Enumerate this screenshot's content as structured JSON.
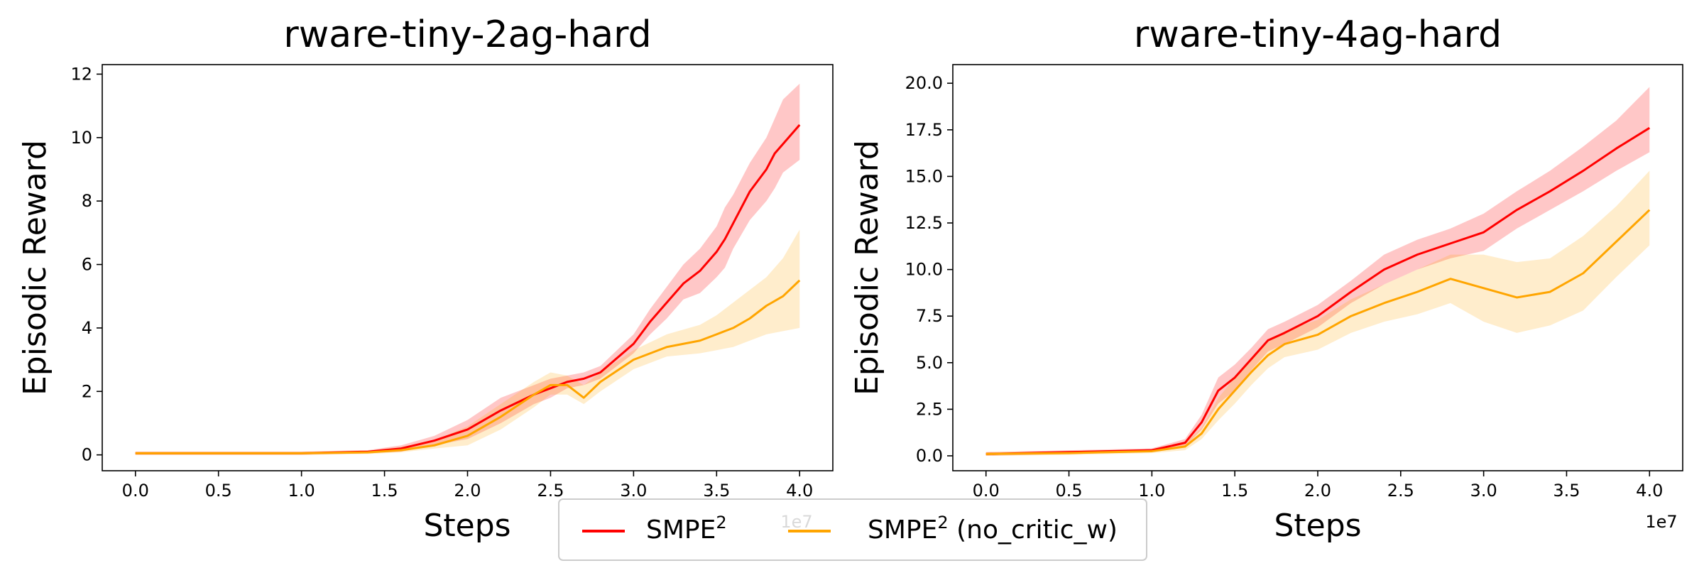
{
  "chart_data": [
    {
      "type": "line",
      "title": "rware-tiny-2ag-hard",
      "xlabel": "Steps",
      "ylabel": "Episodic Reward",
      "x_scale_label": "1e7",
      "xlim": [
        -0.2,
        4.2
      ],
      "ylim": [
        -0.5,
        12.3
      ],
      "xticks": [
        0.0,
        0.5,
        1.0,
        1.5,
        2.0,
        2.5,
        3.0,
        3.5,
        4.0
      ],
      "xtick_labels": [
        "0.0",
        "0.5",
        "1.0",
        "1.5",
        "2.0",
        "2.5",
        "3.0",
        "3.5",
        "4.0"
      ],
      "yticks": [
        0,
        2,
        4,
        6,
        8,
        10,
        12
      ],
      "ytick_labels": [
        "0",
        "2",
        "4",
        "6",
        "8",
        "10",
        "12"
      ],
      "grid": false,
      "series": [
        {
          "name": "SMPE2",
          "color": "#ff0000",
          "x": [
            0.0,
            0.5,
            1.0,
            1.4,
            1.6,
            1.8,
            2.0,
            2.2,
            2.4,
            2.5,
            2.6,
            2.7,
            2.8,
            3.0,
            3.1,
            3.2,
            3.3,
            3.4,
            3.5,
            3.55,
            3.6,
            3.7,
            3.8,
            3.85,
            3.9,
            4.0
          ],
          "y": [
            0.05,
            0.05,
            0.05,
            0.1,
            0.2,
            0.45,
            0.8,
            1.4,
            1.9,
            2.1,
            2.3,
            2.4,
            2.6,
            3.5,
            4.2,
            4.8,
            5.4,
            5.8,
            6.4,
            6.8,
            7.3,
            8.3,
            9.0,
            9.5,
            9.8,
            10.4
          ],
          "lower": [
            0.0,
            0.0,
            0.0,
            0.05,
            0.1,
            0.3,
            0.5,
            1.0,
            1.6,
            1.8,
            2.1,
            2.2,
            2.4,
            3.2,
            3.8,
            4.3,
            4.9,
            5.1,
            5.6,
            5.9,
            6.5,
            7.4,
            8.0,
            8.4,
            8.9,
            9.3
          ],
          "upper": [
            0.1,
            0.1,
            0.1,
            0.15,
            0.3,
            0.6,
            1.1,
            1.8,
            2.2,
            2.4,
            2.5,
            2.6,
            2.8,
            3.8,
            4.6,
            5.3,
            6.0,
            6.5,
            7.2,
            7.8,
            8.2,
            9.2,
            10.0,
            10.6,
            11.2,
            11.7
          ]
        },
        {
          "name": "SMPE2 (no_critic_w)",
          "color": "#ffa500",
          "x": [
            0.0,
            0.5,
            1.0,
            1.4,
            1.6,
            1.8,
            2.0,
            2.2,
            2.4,
            2.5,
            2.6,
            2.7,
            2.8,
            3.0,
            3.2,
            3.4,
            3.5,
            3.6,
            3.7,
            3.8,
            3.9,
            4.0
          ],
          "y": [
            0.05,
            0.05,
            0.05,
            0.08,
            0.15,
            0.3,
            0.6,
            1.2,
            1.9,
            2.2,
            2.2,
            1.8,
            2.3,
            3.0,
            3.4,
            3.6,
            3.8,
            4.0,
            4.3,
            4.7,
            5.0,
            5.5
          ],
          "lower": [
            0.0,
            0.0,
            0.0,
            0.03,
            0.08,
            0.2,
            0.3,
            0.8,
            1.5,
            1.9,
            1.9,
            1.6,
            2.0,
            2.7,
            3.1,
            3.2,
            3.3,
            3.4,
            3.6,
            3.8,
            3.9,
            4.0
          ],
          "upper": [
            0.1,
            0.1,
            0.1,
            0.13,
            0.25,
            0.45,
            0.9,
            1.6,
            2.3,
            2.6,
            2.5,
            2.2,
            2.6,
            3.3,
            3.8,
            4.1,
            4.4,
            4.8,
            5.2,
            5.6,
            6.2,
            7.1
          ]
        }
      ]
    },
    {
      "type": "line",
      "title": "rware-tiny-4ag-hard",
      "xlabel": "Steps",
      "ylabel": "Episodic Reward",
      "x_scale_label": "1e7",
      "xlim": [
        -0.2,
        4.2
      ],
      "ylim": [
        -0.8,
        21.0
      ],
      "xticks": [
        0.0,
        0.5,
        1.0,
        1.5,
        2.0,
        2.5,
        3.0,
        3.5,
        4.0
      ],
      "xtick_labels": [
        "0.0",
        "0.5",
        "1.0",
        "1.5",
        "2.0",
        "2.5",
        "3.0",
        "3.5",
        "4.0"
      ],
      "yticks": [
        0.0,
        2.5,
        5.0,
        7.5,
        10.0,
        12.5,
        15.0,
        17.5,
        20.0
      ],
      "ytick_labels": [
        "0.0",
        "2.5",
        "5.0",
        "7.5",
        "10.0",
        "12.5",
        "15.0",
        "17.5",
        "20.0"
      ],
      "grid": false,
      "series": [
        {
          "name": "SMPE2",
          "color": "#ff0000",
          "x": [
            0.0,
            0.5,
            1.0,
            1.2,
            1.3,
            1.4,
            1.5,
            1.6,
            1.7,
            1.8,
            2.0,
            2.2,
            2.4,
            2.6,
            2.8,
            3.0,
            3.2,
            3.4,
            3.6,
            3.8,
            4.0
          ],
          "y": [
            0.1,
            0.2,
            0.3,
            0.7,
            1.8,
            3.5,
            4.2,
            5.2,
            6.2,
            6.6,
            7.5,
            8.8,
            10.0,
            10.8,
            11.4,
            12.0,
            13.2,
            14.2,
            15.3,
            16.5,
            17.6
          ],
          "lower": [
            0.0,
            0.1,
            0.2,
            0.5,
            1.4,
            2.8,
            3.5,
            4.6,
            5.6,
            6.0,
            6.9,
            8.2,
            9.2,
            10.0,
            10.6,
            11.0,
            12.2,
            13.2,
            14.2,
            15.3,
            16.3
          ],
          "upper": [
            0.2,
            0.3,
            0.4,
            0.9,
            2.2,
            4.2,
            4.9,
            5.8,
            6.8,
            7.2,
            8.1,
            9.4,
            10.8,
            11.6,
            12.2,
            13.0,
            14.2,
            15.3,
            16.6,
            18.0,
            19.8
          ]
        },
        {
          "name": "SMPE2 (no_critic_w)",
          "color": "#ffa500",
          "x": [
            0.0,
            0.5,
            1.0,
            1.2,
            1.3,
            1.4,
            1.5,
            1.6,
            1.7,
            1.8,
            2.0,
            2.2,
            2.4,
            2.6,
            2.8,
            3.0,
            3.2,
            3.4,
            3.6,
            3.8,
            4.0
          ],
          "y": [
            0.1,
            0.15,
            0.25,
            0.5,
            1.2,
            2.5,
            3.5,
            4.5,
            5.4,
            6.0,
            6.5,
            7.5,
            8.2,
            8.8,
            9.5,
            9.0,
            8.5,
            8.8,
            9.8,
            11.5,
            13.2
          ],
          "lower": [
            0.0,
            0.05,
            0.15,
            0.3,
            0.9,
            1.9,
            2.8,
            3.8,
            4.7,
            5.3,
            5.7,
            6.6,
            7.2,
            7.6,
            8.2,
            7.2,
            6.6,
            7.0,
            7.8,
            9.6,
            11.3
          ],
          "upper": [
            0.2,
            0.25,
            0.35,
            0.7,
            1.5,
            3.1,
            4.2,
            5.2,
            6.1,
            6.7,
            7.3,
            8.4,
            9.2,
            10.0,
            10.8,
            10.8,
            10.4,
            10.6,
            11.8,
            13.4,
            15.3
          ]
        }
      ]
    }
  ],
  "legend": {
    "placement": "bottom-center",
    "entries": [
      {
        "name": "SMPE",
        "sup": "2",
        "suffix": "",
        "color": "#ff0000"
      },
      {
        "name": "SMPE",
        "sup": "2",
        "suffix": " (no_critic_w)",
        "color": "#ffa500"
      }
    ]
  }
}
